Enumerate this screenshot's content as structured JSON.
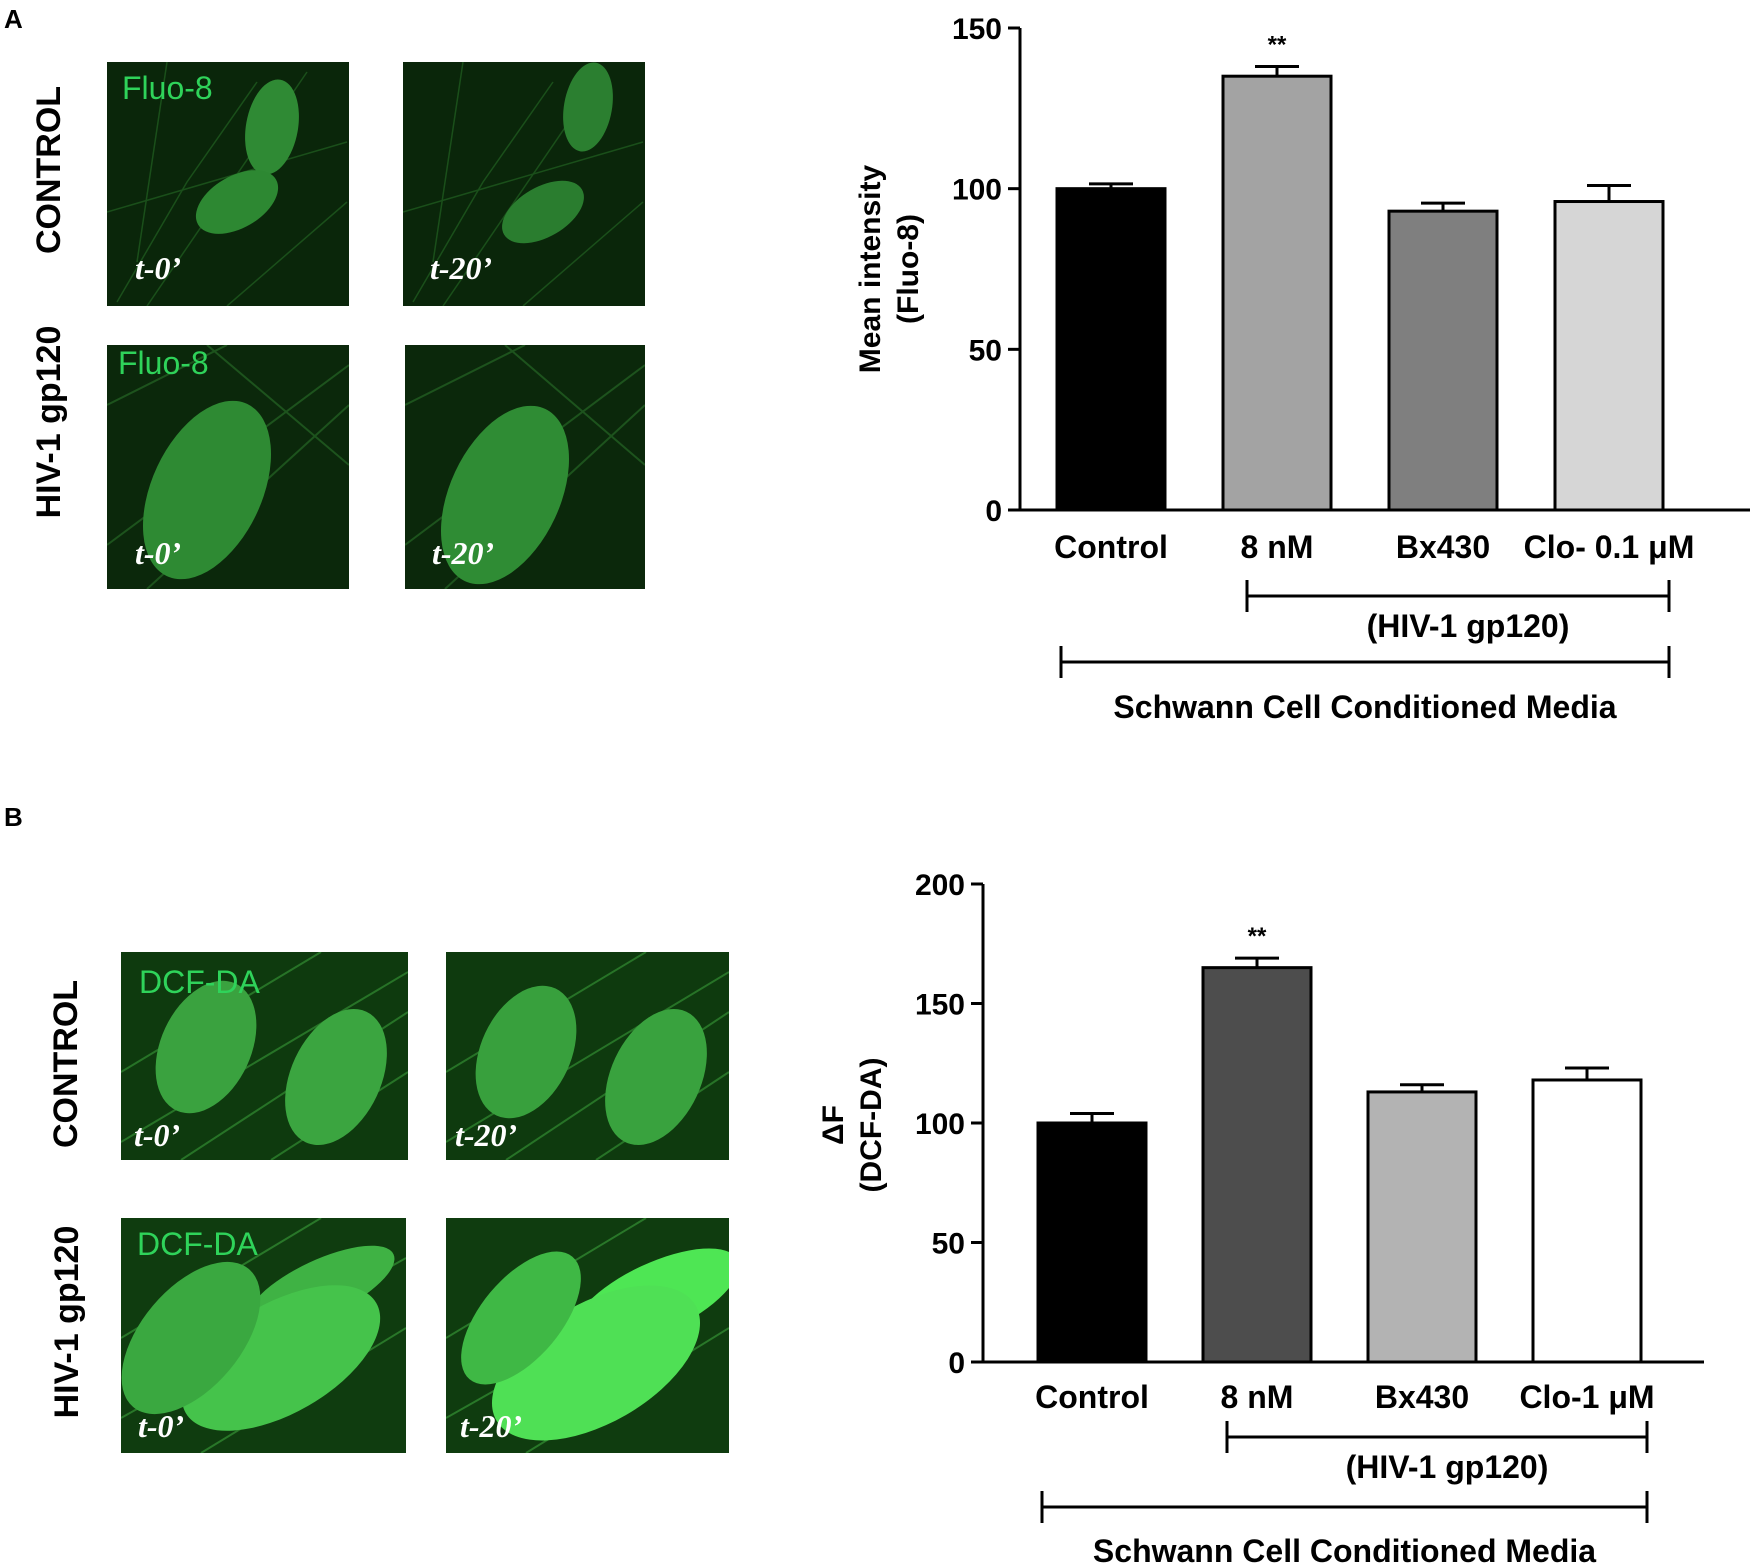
{
  "panels": [
    {
      "letter": "A",
      "micrographs": {
        "row_labels": [
          "CONTROL",
          "HIV-1 gp120"
        ],
        "probe": "Fluo-8",
        "times": [
          "t-0’",
          "t-20’"
        ]
      }
    },
    {
      "letter": "B",
      "micrographs": {
        "row_labels": [
          "CONTROL",
          "HIV-1 gp120"
        ],
        "probe": "DCF-DA",
        "times": [
          "t-0’",
          "t-20’"
        ]
      }
    }
  ],
  "chart_data": [
    {
      "type": "bar",
      "categories": [
        "Control",
        "8 nM",
        "Bx430",
        "Clo- 0.1 μM"
      ],
      "values": [
        100,
        135,
        93,
        96
      ],
      "errors": [
        1.5,
        3,
        2.5,
        5
      ],
      "bar_colors": [
        "#000000",
        "#a3a3a3",
        "#7f7f7f",
        "#d6d6d6"
      ],
      "significance": [
        "",
        "**",
        "",
        ""
      ],
      "ylabel": [
        "Mean intensity",
        "(Fluo-8)"
      ],
      "ylim": [
        0,
        150
      ],
      "yticks": [
        0,
        50,
        100,
        150
      ],
      "brackets": [
        {
          "label": "(HIV-1 gp120)",
          "from": "8 nM",
          "to": "Clo- 0.1 μM"
        },
        {
          "label": "Schwann Cell Conditioned Media",
          "from": "Control",
          "to": "Clo- 0.1 μM"
        }
      ]
    },
    {
      "type": "bar",
      "categories": [
        "Control",
        "8 nM",
        "Bx430",
        "Clo-1 μM"
      ],
      "values": [
        100,
        165,
        113,
        118
      ],
      "errors": [
        4,
        4,
        3,
        5
      ],
      "bar_colors": [
        "#000000",
        "#4d4d4d",
        "#b3b3b3",
        "#ffffff"
      ],
      "significance": [
        "",
        "**",
        "",
        ""
      ],
      "ylabel": [
        "ΔF",
        "(DCF-DA)"
      ],
      "ylim": [
        0,
        200
      ],
      "yticks": [
        0,
        50,
        100,
        150,
        200
      ],
      "brackets": [
        {
          "label": "(HIV-1 gp120)",
          "from": "8 nM",
          "to": "Clo-1 μM"
        },
        {
          "label": "Schwann Cell Conditioned Media",
          "from": "Control",
          "to": "Clo-1 μM"
        }
      ]
    }
  ]
}
